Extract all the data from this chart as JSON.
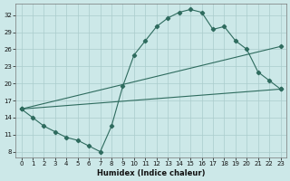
{
  "xlabel": "Humidex (Indice chaleur)",
  "bg_color": "#cce8e8",
  "grid_color": "#aacccc",
  "line_color": "#2e6b5e",
  "xlim": [
    -0.5,
    23.5
  ],
  "ylim": [
    7,
    34
  ],
  "yticks": [
    8,
    11,
    14,
    17,
    20,
    23,
    26,
    29,
    32
  ],
  "xticks": [
    0,
    1,
    2,
    3,
    4,
    5,
    6,
    7,
    8,
    9,
    10,
    11,
    12,
    13,
    14,
    15,
    16,
    17,
    18,
    19,
    20,
    21,
    22,
    23
  ],
  "line1_x": [
    0,
    1,
    2,
    3,
    4,
    5,
    6,
    7,
    8,
    9,
    10,
    11,
    12,
    13,
    14,
    15,
    16,
    17,
    18,
    19,
    20,
    21,
    22,
    23
  ],
  "line1_y": [
    15.5,
    14.0,
    12.5,
    11.5,
    10.5,
    10.0,
    9.0,
    8.0,
    12.5,
    19.5,
    25.0,
    27.5,
    30.0,
    31.5,
    32.5,
    33.0,
    32.5,
    29.5,
    30.0,
    27.5,
    26.0,
    22.0,
    20.5,
    19.0
  ],
  "line2_x": [
    0,
    23
  ],
  "line2_y": [
    15.5,
    19.0
  ],
  "line3_x": [
    0,
    23
  ],
  "line3_y": [
    15.5,
    26.5
  ],
  "xlabel_fontsize": 6,
  "tick_fontsize": 5,
  "linewidth": 0.8,
  "markersize": 2.2
}
